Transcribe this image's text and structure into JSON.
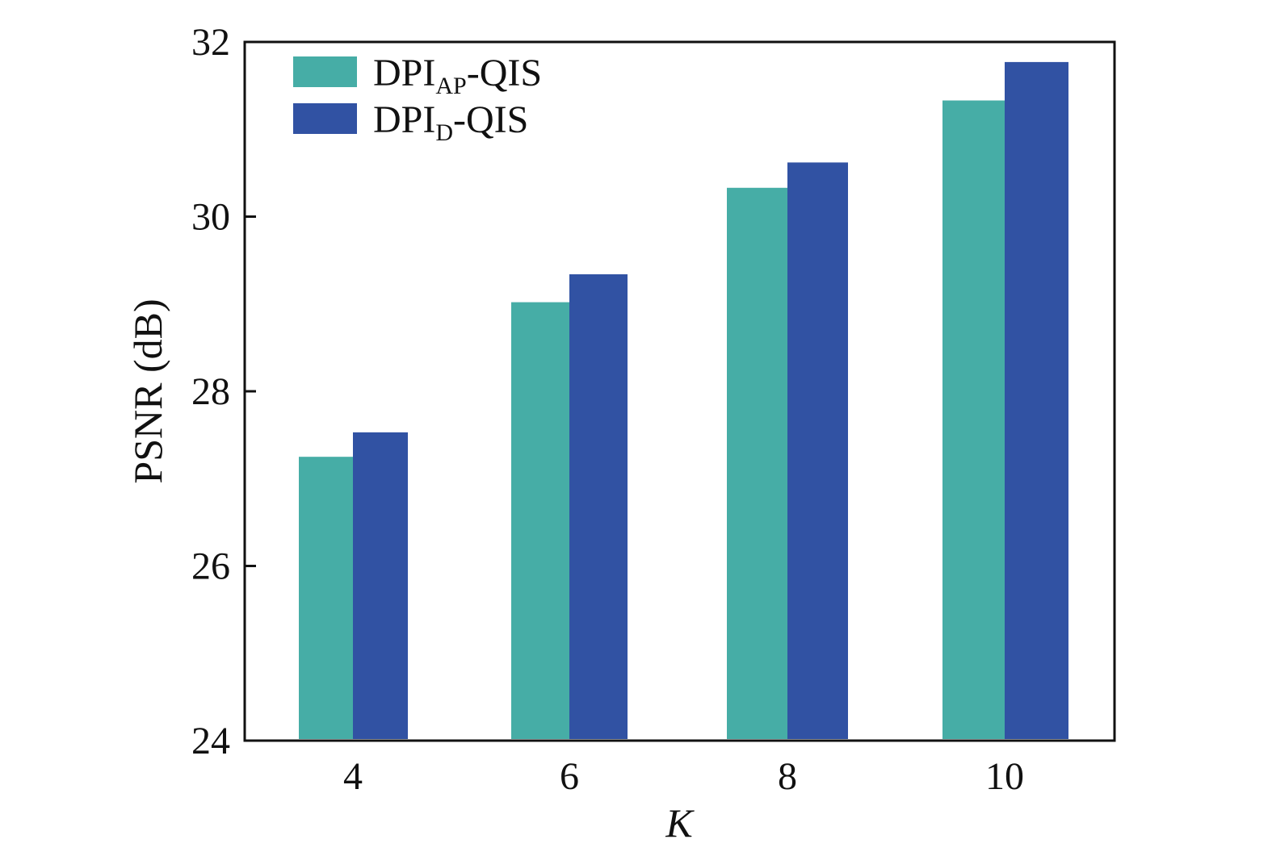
{
  "chart_data": {
    "type": "bar",
    "categories": [
      "4",
      "6",
      "8",
      "10"
    ],
    "series": [
      {
        "name": "DPI_AP-QIS",
        "name_main": "DPI",
        "name_sub": "AP",
        "name_tail": "-QIS",
        "color": "#46ada6",
        "values": [
          27.25,
          29.02,
          30.33,
          31.33
        ]
      },
      {
        "name": "DPI_D-QIS",
        "name_main": "DPI",
        "name_sub": "D",
        "name_tail": "-QIS",
        "color": "#3152a3",
        "values": [
          27.53,
          29.34,
          30.62,
          31.77
        ]
      }
    ],
    "xlabel": "K",
    "ylabel": "PSNR (dB)",
    "ylim": [
      24,
      32
    ],
    "yticks": [
      24,
      26,
      28,
      30,
      32
    ],
    "grid": false,
    "legend_position": "top-left"
  }
}
